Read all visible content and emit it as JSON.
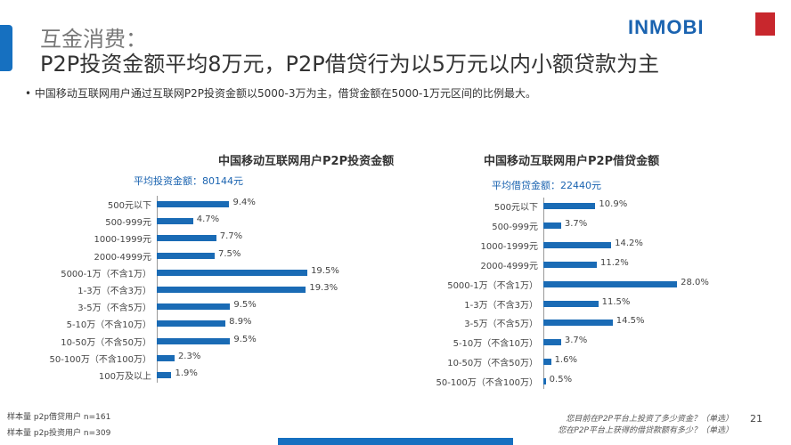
{
  "header": {
    "title_line1": "互金消费：",
    "title_line2": "P2P投资金额平均8万元，P2P借贷行为以5万元以内小额贷款为主",
    "bullet": "•   中国移动互联网用户通过互联网P2P投资金额以5000-3万为主，借贷金额在5000-1万元区间的比例最大。",
    "logo": "INMOBI"
  },
  "colors": {
    "bar": "#1a6bb5",
    "accent": "#1670c0"
  },
  "chart_data": [
    {
      "type": "bar",
      "orientation": "horizontal",
      "title": "中国移动互联网用户P2P投资金额",
      "subtitle": "平均投资金额：80144元",
      "categories": [
        "500元以下",
        "500-999元",
        "1000-1999元",
        "2000-4999元",
        "5000-1万（不含1万）",
        "1-3万（不含3万）",
        "3-5万（不含5万）",
        "5-10万（不含10万）",
        "10-50万（不含50万）",
        "50-100万（不含100万）",
        "100万及以上"
      ],
      "values": [
        9.4,
        4.7,
        7.7,
        7.5,
        19.5,
        19.3,
        9.5,
        8.9,
        9.5,
        2.3,
        1.9
      ],
      "unit": "%"
    },
    {
      "type": "bar",
      "orientation": "horizontal",
      "title": "中国移动互联网用户P2P借贷金额",
      "subtitle": "平均借贷金额：22440元",
      "categories": [
        "500元以下",
        "500-999元",
        "1000-1999元",
        "2000-4999元",
        "5000-1万（不含1万）",
        "1-3万（不含3万）",
        "3-5万（不含5万）",
        "5-10万（不含10万）",
        "10-50万（不含50万）",
        "50-100万（不含100万）"
      ],
      "values": [
        10.9,
        3.7,
        14.2,
        11.2,
        28.0,
        11.5,
        14.5,
        3.7,
        1.6,
        0.5
      ],
      "unit": "%"
    }
  ],
  "footer": {
    "sample1": "样本量 p2p借贷用户 n=161",
    "sample2": "样本量 p2p投资用户 n=309",
    "question1": "您目前在P2P平台上投资了多少资金？（单选）",
    "question2": "您在P2P平台上获得的借贷款额有多少？（单选）",
    "page": "21"
  }
}
